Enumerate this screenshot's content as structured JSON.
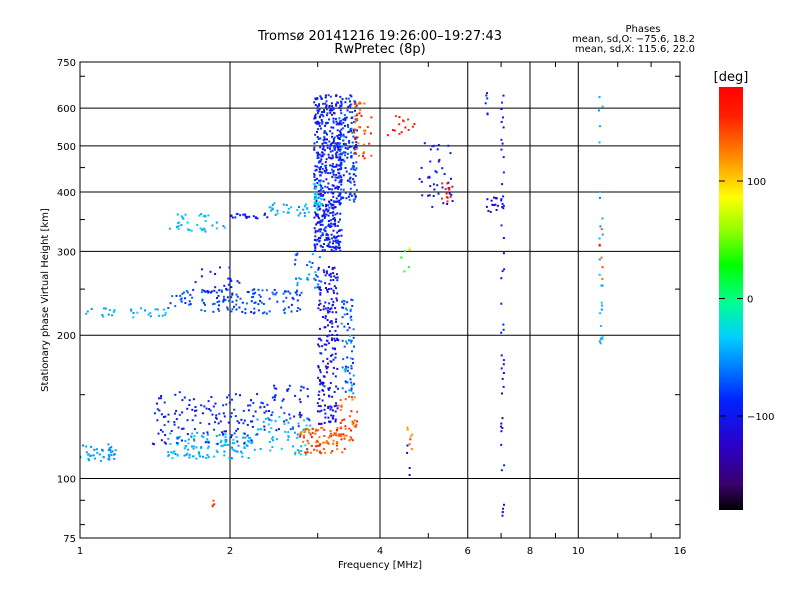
{
  "chart_data": {
    "type": "scatter",
    "title": "Tromsø 20141216 19:26:00–19:27:43",
    "subtitle": "RwPretec (8p)",
    "xlabel": "Frequency [MHz]",
    "ylabel": "Stationary phase Virtual Height [km]",
    "x_scale": "log",
    "y_scale": "log",
    "xlim": [
      1,
      16
    ],
    "ylim": [
      75,
      750
    ],
    "x_ticks": [
      {
        "value": 1,
        "label": "1"
      },
      {
        "value": 2,
        "label": "2"
      },
      {
        "value": 4,
        "label": "4"
      },
      {
        "value": 6,
        "label": "6"
      },
      {
        "value": 8,
        "label": "8"
      },
      {
        "value": 10,
        "label": "10"
      },
      {
        "value": 16,
        "label": "16"
      }
    ],
    "y_ticks": [
      {
        "value": 75,
        "label": "75"
      },
      {
        "value": 100,
        "label": "100"
      },
      {
        "value": 200,
        "label": "200"
      },
      {
        "value": 300,
        "label": "300"
      },
      {
        "value": 400,
        "label": "400"
      },
      {
        "value": 500,
        "label": "500"
      },
      {
        "value": 600,
        "label": "600"
      },
      {
        "value": 750,
        "label": "750"
      }
    ],
    "grid": true,
    "stats": {
      "heading": "Phases",
      "line_o": "mean, sd,O: −75.6, 18.2",
      "line_x": "mean, sd,X: 115.6, 22.0"
    },
    "colorbar": {
      "label": "[deg]",
      "range": [
        -180,
        180
      ],
      "ticks": [
        {
          "value": 100,
          "label": "100"
        },
        {
          "value": 0,
          "label": "0"
        },
        {
          "value": -100,
          "label": "−100"
        }
      ]
    },
    "point_groups": [
      {
        "f": [
          1.0,
          1.18
        ],
        "h": [
          108,
          118
        ],
        "phase": [
          -60,
          -40
        ],
        "n": 40
      },
      {
        "f": [
          1.5,
          2.2
        ],
        "h": [
          110,
          125
        ],
        "phase": [
          -55,
          -30
        ],
        "n": 120
      },
      {
        "f": [
          2.2,
          2.9
        ],
        "h": [
          112,
          135
        ],
        "phase": [
          -50,
          -25
        ],
        "n": 60
      },
      {
        "f": [
          1.4,
          2.3
        ],
        "h": [
          118,
          152
        ],
        "phase": [
          -110,
          -75
        ],
        "n": 130
      },
      {
        "f": [
          2.3,
          2.9
        ],
        "h": [
          125,
          158
        ],
        "phase": [
          -110,
          -70
        ],
        "n": 55
      },
      {
        "f": [
          2.75,
          3.4
        ],
        "h": [
          113,
          128
        ],
        "phase": [
          115,
          160
        ],
        "n": 90
      },
      {
        "f": [
          3.3,
          3.6
        ],
        "h": [
          120,
          150
        ],
        "phase": [
          120,
          165
        ],
        "n": 40
      },
      {
        "f": [
          3.0,
          3.3
        ],
        "h": [
          130,
          280
        ],
        "phase": [
          -125,
          -85
        ],
        "n": 200
      },
      {
        "f": [
          3.35,
          3.55
        ],
        "h": [
          150,
          240
        ],
        "phase": [
          -100,
          -40
        ],
        "n": 70
      },
      {
        "f": [
          1.0,
          1.5
        ],
        "h": [
          218,
          228
        ],
        "phase": [
          -55,
          -30
        ],
        "n": 30
      },
      {
        "f": [
          1.5,
          2.8
        ],
        "h": [
          222,
          250
        ],
        "phase": [
          -90,
          -60
        ],
        "n": 140
      },
      {
        "f": [
          1.7,
          2.1
        ],
        "h": [
          240,
          280
        ],
        "phase": [
          -110,
          -80
        ],
        "n": 25
      },
      {
        "f": [
          2.7,
          3.05
        ],
        "h": [
          250,
          300
        ],
        "phase": [
          -80,
          -40
        ],
        "n": 30
      },
      {
        "f": [
          1.5,
          2.0
        ],
        "h": [
          330,
          360
        ],
        "phase": [
          -50,
          -30
        ],
        "n": 35
      },
      {
        "f": [
          2.0,
          2.4
        ],
        "h": [
          350,
          360
        ],
        "phase": [
          -110,
          -80
        ],
        "n": 20
      },
      {
        "f": [
          2.4,
          2.9
        ],
        "h": [
          355,
          380
        ],
        "phase": [
          -60,
          -25
        ],
        "n": 30
      },
      {
        "f": [
          2.95,
          3.35
        ],
        "h": [
          300,
          640
        ],
        "phase": [
          -120,
          -70
        ],
        "n": 500
      },
      {
        "f": [
          3.3,
          3.6
        ],
        "h": [
          380,
          640
        ],
        "phase": [
          -110,
          -60
        ],
        "n": 180
      },
      {
        "f": [
          2.95,
          3.05
        ],
        "h": [
          360,
          420
        ],
        "phase": [
          -40,
          -20
        ],
        "n": 25
      },
      {
        "f": [
          3.55,
          3.85
        ],
        "h": [
          470,
          620
        ],
        "phase": [
          120,
          170
        ],
        "n": 40
      },
      {
        "f": [
          4.1,
          4.7
        ],
        "h": [
          520,
          580
        ],
        "phase": [
          140,
          175
        ],
        "n": 15
      },
      {
        "f": [
          4.8,
          5.6
        ],
        "h": [
          370,
          510
        ],
        "phase": [
          -120,
          -90
        ],
        "n": 40
      },
      {
        "f": [
          5.3,
          5.6
        ],
        "h": [
          380,
          420
        ],
        "phase": [
          150,
          175
        ],
        "n": 12
      },
      {
        "f": [
          6.4,
          7.1
        ],
        "h": [
          360,
          390
        ],
        "phase": [
          -130,
          -110
        ],
        "n": 15
      },
      {
        "f": [
          7.0,
          7.1
        ],
        "h": [
          80,
          650
        ],
        "phase": [
          -120,
          -80
        ],
        "n": 50
      },
      {
        "f": [
          6.5,
          6.8
        ],
        "h": [
          580,
          650
        ],
        "phase": [
          -110,
          -80
        ],
        "n": 6
      },
      {
        "f": [
          11.0,
          11.2
        ],
        "h": [
          190,
          640
        ],
        "phase": [
          -60,
          -30
        ],
        "n": 25
      },
      {
        "f": [
          11.0,
          11.2
        ],
        "h": [
          250,
          380
        ],
        "phase": [
          130,
          170
        ],
        "n": 6
      },
      {
        "f": [
          4.5,
          4.65
        ],
        "h": [
          115,
          135
        ],
        "phase": [
          110,
          150
        ],
        "n": 8
      },
      {
        "f": [
          4.5,
          4.6
        ],
        "h": [
          100,
          118
        ],
        "phase": [
          -120,
          -100
        ],
        "n": 4
      },
      {
        "f": [
          1.82,
          1.86
        ],
        "h": [
          86,
          90
        ],
        "phase": [
          140,
          160
        ],
        "n": 4
      },
      {
        "f": [
          4.4,
          4.6
        ],
        "h": [
          270,
          310
        ],
        "phase": [
          -20,
          130
        ],
        "n": 6
      }
    ]
  }
}
